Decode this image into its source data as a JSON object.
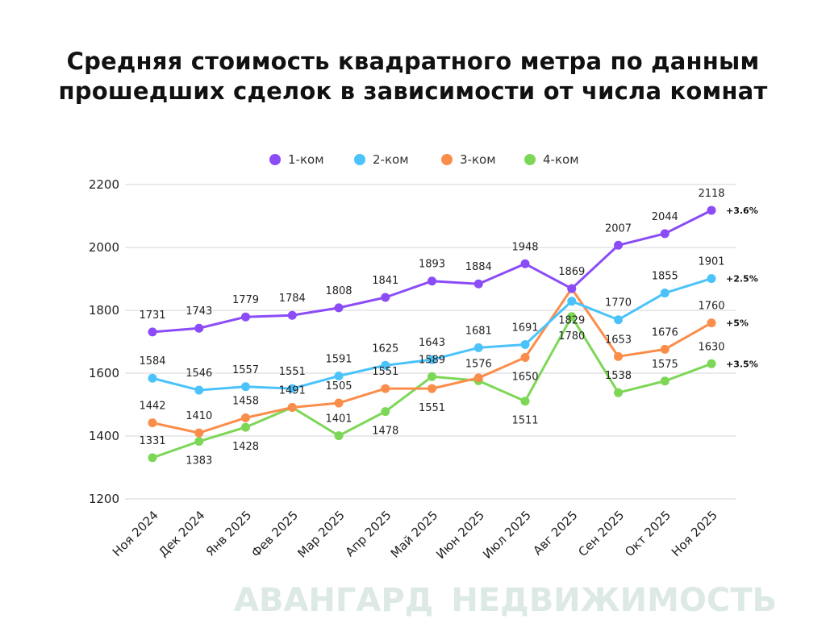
{
  "chart_data": {
    "type": "line",
    "title_lines": [
      "Средняя стоимость квадратного метра по данным",
      "прошедших сделок в зависимости от числа комнат"
    ],
    "categories": [
      "Ноя 2024",
      "Дек 2024",
      "Янв 2025",
      "Фев 2025",
      "Мар 2025",
      "Апр 2025",
      "Май 2025",
      "Июн 2025",
      "Июл 2025",
      "Авг 2025",
      "Сен 2025",
      "Окт 2025",
      "Ноя 2025"
    ],
    "ylim": [
      1200,
      2200
    ],
    "yticks": [
      1200,
      1400,
      1600,
      1800,
      2000,
      2200
    ],
    "grid": true,
    "legend_position": "top-center",
    "series": [
      {
        "name": "1-ком",
        "color": "#8b4cf7",
        "values": [
          1731,
          1743,
          1779,
          1784,
          1808,
          1841,
          1893,
          1884,
          1948,
          1869,
          2007,
          2044,
          2118
        ],
        "change": "+3.6%"
      },
      {
        "name": "2-ком",
        "color": "#4bc3fa",
        "values": [
          1584,
          1546,
          1557,
          1551,
          1591,
          1625,
          1643,
          1681,
          1691,
          1829,
          1770,
          1855,
          1901
        ],
        "change": "+2.5%"
      },
      {
        "name": "3-ком",
        "color": "#fb8d4b",
        "values": [
          1442,
          1410,
          1458,
          1491,
          1505,
          1551,
          1551,
          1585,
          1650,
          1869,
          1653,
          1676,
          1760
        ],
        "change": "+5%"
      },
      {
        "name": "4-ком",
        "color": "#7dd757",
        "values": [
          1331,
          1383,
          1428,
          1491,
          1401,
          1478,
          1589,
          1576,
          1511,
          1780,
          1538,
          1575,
          1630
        ],
        "change": "+3.5%"
      }
    ]
  },
  "watermark": {
    "line1": "АВАНГАРД",
    "line2": "НЕДВИЖИМОСТЬ"
  }
}
